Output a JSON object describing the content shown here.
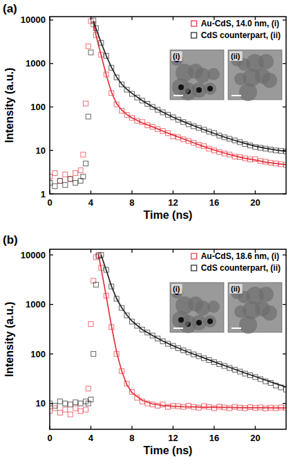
{
  "chart_data": [
    {
      "type": "scatter",
      "title": "(a)",
      "x_label": "Time (ns)",
      "y_label": "Intensity (a.u.)",
      "log": "y",
      "grid": false,
      "legend": "upper right",
      "xlim": [
        0,
        23
      ],
      "xticks": [
        0,
        4,
        8,
        12,
        16,
        20
      ],
      "ylim": [
        1,
        12000
      ],
      "yticks": [
        1,
        10,
        100,
        1000,
        10000
      ],
      "annotations": [
        "(i)",
        "(ii)"
      ],
      "series": [
        {
          "name": "Au-CdS, 14.0 nm, (i)",
          "color": "#e8303a",
          "marker": "square",
          "line_style": "solid",
          "x": [
            0,
            0.5,
            1,
            1.5,
            2,
            2.5,
            3,
            3.25,
            3.5,
            3.75,
            4,
            4.25,
            4.5,
            5,
            5.5,
            6,
            6.5,
            7,
            7.5,
            8,
            8.5,
            9,
            9.5,
            10,
            10.5,
            11,
            11.5,
            12,
            12.5,
            13,
            13.5,
            14,
            14.5,
            15,
            15.5,
            16,
            16.5,
            17,
            17.5,
            18,
            18.5,
            19,
            19.5,
            20,
            20.5,
            21,
            21.5,
            22,
            22.5,
            23
          ],
          "values": [
            2.5,
            3,
            2,
            2.8,
            2.2,
            3,
            3.5,
            8,
            120,
            2500,
            9500,
            8000,
            4500,
            1600,
            560,
            210,
            115,
            82,
            66,
            56,
            48,
            45,
            38,
            35,
            31,
            28,
            25,
            21,
            20,
            18,
            16.5,
            15,
            13.5,
            12.5,
            11,
            10,
            9.2,
            8.5,
            8,
            7.2,
            7,
            6.6,
            6.2,
            6.3,
            5.7,
            5.5,
            5.2,
            5,
            4.8,
            4.6
          ],
          "fit_x": [
            4.25,
            4.5,
            5,
            5.5,
            6,
            6.5,
            7,
            7.5,
            8,
            9,
            10,
            11,
            12,
            13,
            14,
            15,
            16,
            17,
            18,
            19,
            20,
            21,
            22,
            23
          ],
          "fit": [
            8500,
            4500,
            1550,
            540,
            220,
            120,
            85,
            67,
            56,
            43,
            35,
            28,
            22.5,
            18.5,
            15,
            12.3,
            10.2,
            8.7,
            7.5,
            6.6,
            6,
            5.4,
            5,
            4.7
          ]
        },
        {
          "name": "CdS counterpart, (ii)",
          "color": "#222222",
          "marker": "square",
          "line_style": "solid",
          "x": [
            0,
            0.5,
            1,
            1.5,
            2,
            2.5,
            3,
            3.25,
            3.5,
            3.75,
            4,
            4.25,
            4.5,
            5,
            5.5,
            6,
            6.5,
            7,
            7.5,
            8,
            8.5,
            9,
            9.5,
            10,
            10.5,
            11,
            11.5,
            12,
            12.5,
            13,
            13.5,
            14,
            14.5,
            15,
            15.5,
            16,
            16.5,
            17,
            17.5,
            18,
            18.5,
            19,
            19.5,
            20,
            20.5,
            21,
            21.5,
            22,
            22.5,
            23
          ],
          "values": [
            1.8,
            1.5,
            2,
            1.6,
            2.2,
            1.8,
            2,
            2.5,
            5,
            60,
            1800,
            9800,
            6500,
            3000,
            1500,
            800,
            480,
            330,
            250,
            200,
            165,
            140,
            118,
            100,
            86,
            75,
            66,
            58,
            51,
            45,
            40,
            36,
            33,
            30,
            27,
            25,
            22,
            20,
            18.5,
            17,
            15.5,
            14,
            13,
            12,
            11.5,
            11,
            10.5,
            10,
            9.8,
            9.5
          ],
          "fit_x": [
            4.25,
            4.5,
            5,
            5.5,
            6,
            6.5,
            7,
            7.5,
            8,
            9,
            10,
            11,
            12,
            13,
            14,
            15,
            16,
            17,
            18,
            19,
            20,
            21,
            22,
            23
          ],
          "fit": [
            9500,
            6400,
            3000,
            1500,
            820,
            490,
            335,
            255,
            205,
            140,
            101,
            76,
            58,
            46,
            37,
            30,
            24.5,
            20.3,
            17,
            14.5,
            12.5,
            11.2,
            10.2,
            9.5
          ]
        }
      ]
    },
    {
      "type": "scatter",
      "title": "(b)",
      "x_label": "Time (ns)",
      "y_label": "Intensity (a.u.)",
      "log": "y",
      "grid": false,
      "legend": "upper right",
      "xlim": [
        0,
        23
      ],
      "xticks": [
        0,
        4,
        8,
        12,
        16,
        20
      ],
      "ylim": [
        3,
        13000
      ],
      "yticks": [
        10,
        100,
        1000,
        10000
      ],
      "annotations": [
        "(i)",
        "(ii)"
      ],
      "series": [
        {
          "name": "Au-CdS, 18.6 nm, (i)",
          "color": "#e8303a",
          "marker": "square",
          "line_style": "solid",
          "x": [
            0,
            0.5,
            1,
            1.5,
            2,
            2.5,
            3,
            3.5,
            3.75,
            4,
            4.25,
            4.5,
            4.75,
            5,
            5.5,
            6,
            6.5,
            7,
            7.5,
            8,
            8.5,
            9,
            9.5,
            10,
            10.5,
            11,
            11.5,
            12,
            12.5,
            13,
            13.5,
            14,
            14.5,
            15,
            15.5,
            16,
            16.5,
            17,
            17.5,
            18,
            18.5,
            19,
            19.5,
            20,
            20.5,
            21,
            21.5,
            22,
            22.5,
            23
          ],
          "values": [
            7,
            8,
            6.5,
            7.5,
            6,
            8,
            7,
            7.5,
            20,
            400,
            3000,
            9000,
            10000,
            5500,
            1500,
            350,
            100,
            45,
            25,
            17,
            13,
            11,
            10,
            9.5,
            9,
            9.5,
            8.5,
            9,
            8.8,
            8.5,
            9,
            8.5,
            8.2,
            8.8,
            8.5,
            8,
            8.6,
            8.3,
            8,
            8.5,
            8.2,
            8,
            8.4,
            8.1,
            8.3,
            7.9,
            8.2,
            8,
            8.3,
            8.1
          ],
          "fit_x": [
            4.75,
            5,
            5.5,
            6,
            6.5,
            7,
            7.5,
            8,
            9,
            10,
            11,
            12,
            13,
            14,
            15,
            16,
            17,
            18,
            19,
            20,
            21,
            22,
            23
          ],
          "fit": [
            10000,
            5300,
            1450,
            370,
            110,
            45,
            24,
            16.5,
            11.5,
            9.8,
            9.1,
            8.8,
            8.6,
            8.5,
            8.4,
            8.35,
            8.3,
            8.25,
            8.2,
            8.2,
            8.15,
            8.1,
            8.1
          ]
        },
        {
          "name": "CdS counterpart, (ii)",
          "color": "#222222",
          "marker": "square",
          "line_style": "solid",
          "x": [
            0,
            0.5,
            1,
            1.5,
            2,
            2.5,
            3,
            3.5,
            3.75,
            4,
            4.25,
            4.5,
            4.75,
            5,
            5.5,
            6,
            6.5,
            7,
            7.5,
            8,
            8.5,
            9,
            9.5,
            10,
            10.5,
            11,
            11.5,
            12,
            12.5,
            13,
            13.5,
            14,
            14.5,
            15,
            15.5,
            16,
            16.5,
            17,
            17.5,
            18,
            18.5,
            19,
            19.5,
            20,
            20.5,
            21,
            21.5,
            22,
            22.5,
            23
          ],
          "values": [
            10,
            9,
            11,
            10,
            9.5,
            10.5,
            10,
            11,
            10,
            12,
            100,
            2500,
            9500,
            10000,
            5000,
            2300,
            1300,
            850,
            600,
            450,
            370,
            310,
            270,
            235,
            205,
            180,
            160,
            145,
            130,
            118,
            108,
            98,
            90,
            82,
            75,
            68,
            62,
            57,
            52,
            48,
            44,
            40,
            37,
            34,
            31,
            28,
            26,
            23,
            21,
            19
          ],
          "fit_x": [
            5,
            5.5,
            6,
            6.5,
            7,
            7.5,
            8,
            9,
            10,
            11,
            12,
            13,
            14,
            15,
            16,
            17,
            18,
            19,
            20,
            21,
            22,
            23
          ],
          "fit": [
            10000,
            4900,
            2350,
            1320,
            860,
            610,
            460,
            310,
            235,
            182,
            146,
            119,
            99,
            83,
            69,
            58,
            49,
            41,
            35,
            29.5,
            25,
            21.5
          ]
        }
      ]
    }
  ]
}
